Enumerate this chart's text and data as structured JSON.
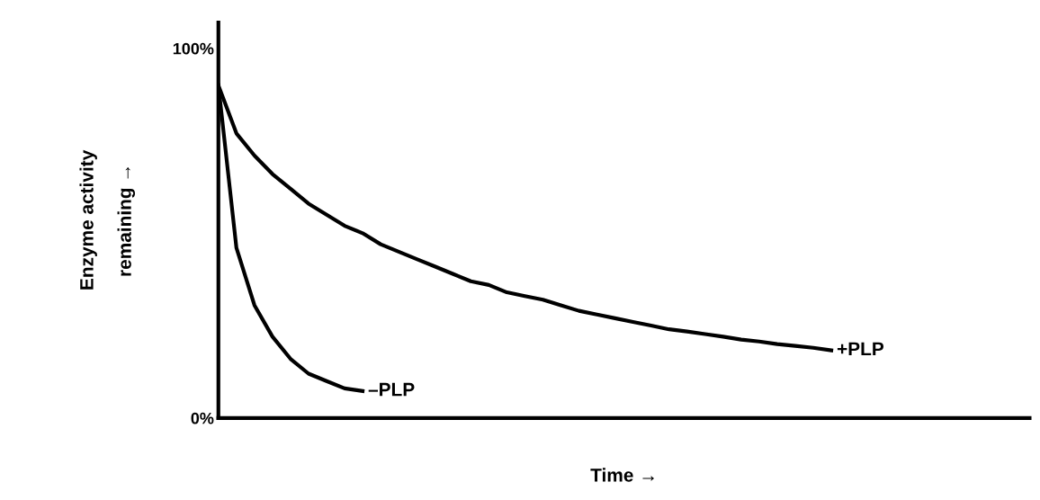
{
  "chart_data": {
    "type": "line",
    "xlabel": "Time →",
    "ylabel": "Enzyme activity\nremaining →",
    "categories": [
      null,
      null,
      null,
      null,
      null,
      null,
      null,
      null,
      null,
      null,
      null,
      null,
      null,
      null,
      null,
      null,
      null,
      null,
      null,
      null,
      null,
      null,
      null,
      null,
      null,
      null,
      null,
      null,
      null,
      null,
      null,
      null,
      null,
      null,
      null,
      null,
      null,
      null,
      null,
      null,
      null,
      null,
      null,
      null,
      null,
      null
    ],
    "series": [
      {
        "name": "+PLP",
        "color": "#000000",
        "values": [
          90,
          77,
          71,
          66,
          62,
          58,
          55,
          52,
          50,
          47,
          45,
          43,
          41,
          39,
          37,
          36,
          34,
          33,
          32,
          30.5,
          29,
          28,
          27,
          26,
          25,
          24,
          23.4,
          22.7,
          22,
          21.2,
          20.7,
          20,
          19.5,
          19,
          18.3,
          null,
          null,
          null,
          null,
          null,
          null,
          null,
          null,
          null,
          null,
          null
        ]
      },
      {
        "name": "–PLP",
        "color": "#000000",
        "values": [
          90,
          46,
          30.5,
          22,
          16,
          12,
          10,
          8,
          7.3,
          null,
          null,
          null,
          null,
          null,
          null,
          null,
          null,
          null,
          null,
          null,
          null,
          null,
          null,
          null,
          null,
          null,
          null,
          null,
          null,
          null,
          null,
          null,
          null,
          null,
          null,
          null,
          null,
          null,
          null,
          null,
          null,
          null,
          null,
          null,
          null,
          null
        ]
      }
    ],
    "ylim": [
      0,
      107
    ],
    "yticks": [
      {
        "value": 0,
        "label": "0%"
      },
      {
        "value": 100,
        "label": "100%"
      }
    ],
    "tick_labels": "y",
    "grid": false,
    "legend": false,
    "marker": "none",
    "line_style": "solid"
  }
}
